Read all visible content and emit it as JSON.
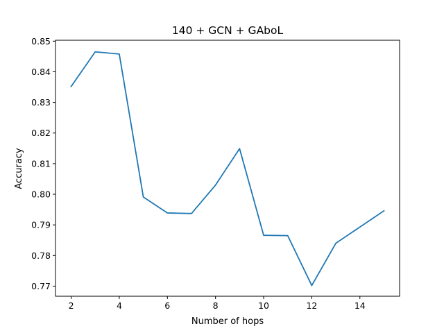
{
  "chart_data": {
    "type": "line",
    "title": "140 + GCN + GAboL",
    "xlabel": "Number of hops",
    "ylabel": "Accuracy",
    "xlim": [
      1.35,
      15.65
    ],
    "ylim": [
      0.7667,
      0.8503
    ],
    "xticks": [
      2,
      4,
      6,
      8,
      10,
      12,
      14
    ],
    "yticks": [
      0.77,
      0.78,
      0.79,
      0.8,
      0.81,
      0.82,
      0.83,
      0.84,
      0.85
    ],
    "ytick_labels": [
      "0.77",
      "0.78",
      "0.79",
      "0.80",
      "0.81",
      "0.82",
      "0.83",
      "0.84",
      "0.85"
    ],
    "grid": false,
    "series": [
      {
        "color": "#1f77b4",
        "x": [
          2,
          3,
          4,
          5,
          6,
          7,
          8,
          9,
          10,
          11,
          12,
          13,
          14,
          15
        ],
        "y": [
          0.8352,
          0.8465,
          0.8458,
          0.7991,
          0.7939,
          0.7937,
          0.803,
          0.8149,
          0.7866,
          0.7865,
          0.7702,
          0.784,
          0.7893,
          0.7946
        ]
      }
    ]
  }
}
